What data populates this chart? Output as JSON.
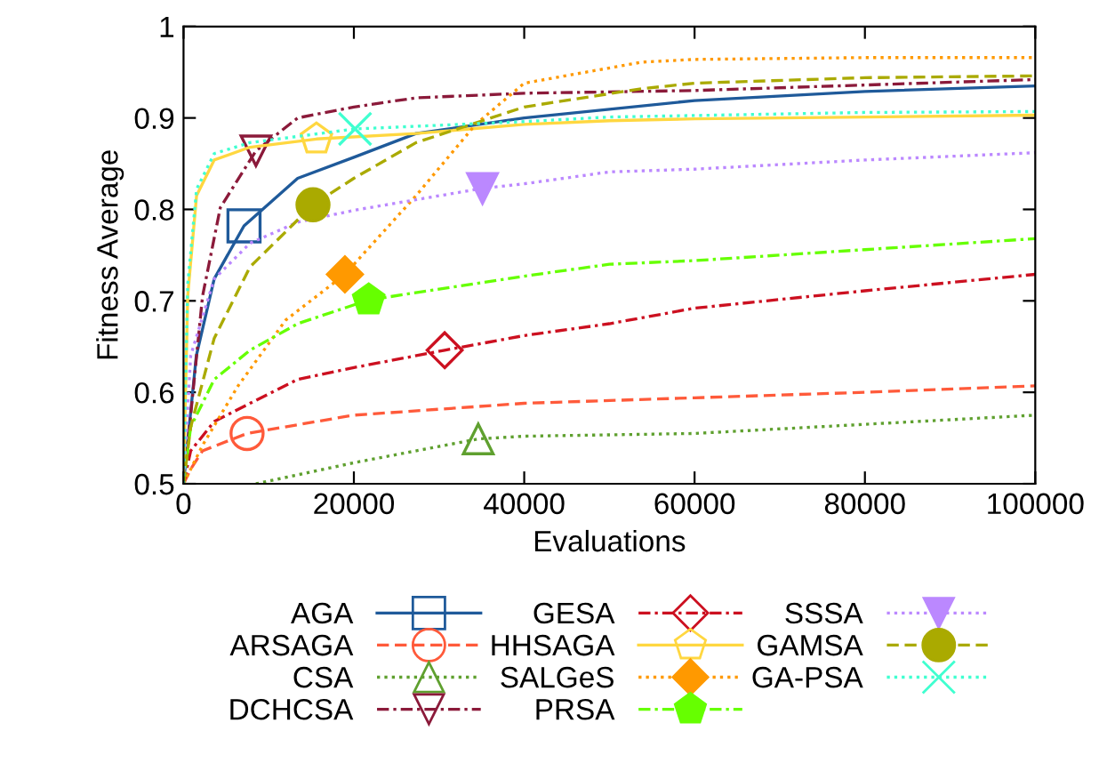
{
  "chart_data": {
    "type": "line",
    "xlabel": "Evaluations",
    "ylabel": "Fitness Average",
    "xlim": [
      0,
      100000
    ],
    "xticks": [
      0,
      20000,
      40000,
      60000,
      80000,
      100000
    ],
    "ylim": [
      0.5,
      1
    ],
    "yticks": [
      0.5,
      0.6,
      0.7,
      0.8,
      0.9,
      1
    ],
    "grid": false,
    "legend": "bottom",
    "series": [
      {
        "name": "AGA",
        "color": "#1f5a9a",
        "line_style": "solid",
        "x": [
          0,
          1500,
          3600,
          7100,
          13400,
          20000,
          27300,
          40000,
          60000,
          80000,
          100000
        ],
        "values": [
          0.5,
          0.64,
          0.724,
          0.782,
          0.834,
          0.857,
          0.883,
          0.9,
          0.919,
          0.929,
          0.935
        ]
      },
      {
        "name": "ARSAGA",
        "color": "#ff5a3a",
        "line_style": "dashed",
        "x": [
          0,
          840,
          2230,
          7460,
          20000,
          40000,
          60000,
          80000,
          100000
        ],
        "values": [
          0.5,
          0.516,
          0.536,
          0.555,
          0.575,
          0.588,
          0.594,
          0.6,
          0.607
        ]
      },
      {
        "name": "CSA",
        "color": "#5fa02f",
        "line_style": "dotted",
        "x": [
          8500,
          20000,
          34600,
          40000,
          60000,
          80000,
          100000
        ],
        "values": [
          0.5,
          0.523,
          0.549,
          0.552,
          0.555,
          0.565,
          0.575
        ]
      },
      {
        "name": "DCHCSA",
        "color": "#8b1a3a",
        "line_style": "dashdot",
        "x": [
          0,
          840,
          2230,
          4320,
          8500,
          13400,
          20000,
          27300,
          40000,
          60000,
          80000,
          100000
        ],
        "values": [
          0.5,
          0.575,
          0.705,
          0.802,
          0.864,
          0.9,
          0.912,
          0.922,
          0.927,
          0.93,
          0.936,
          0.942
        ]
      },
      {
        "name": "GESA",
        "color": "#cc1020",
        "line_style": "dashdot",
        "x": [
          0,
          840,
          3600,
          7800,
          13400,
          20000,
          30660,
          40000,
          50000,
          60000,
          80000,
          100000
        ],
        "values": [
          0.5,
          0.536,
          0.568,
          0.588,
          0.614,
          0.627,
          0.646,
          0.662,
          0.675,
          0.692,
          0.711,
          0.729
        ]
      },
      {
        "name": "HHSAGA",
        "color": "#ffd740",
        "line_style": "solid",
        "x": [
          0,
          490,
          1530,
          3600,
          7800,
          15600,
          27300,
          40000,
          50000,
          60000,
          80000,
          100000
        ],
        "values": [
          0.5,
          0.705,
          0.815,
          0.854,
          0.868,
          0.877,
          0.883,
          0.893,
          0.897,
          0.899,
          0.901,
          0.903
        ]
      },
      {
        "name": "SALGeS",
        "color": "#ff9900",
        "line_style": "dotted",
        "x": [
          0,
          2230,
          6400,
          12000,
          18950,
          27300,
          34300,
          40000,
          53800,
          60000,
          80000,
          100000
        ],
        "values": [
          0.5,
          0.542,
          0.607,
          0.679,
          0.729,
          0.815,
          0.893,
          0.938,
          0.961,
          0.964,
          0.966,
          0.966
        ]
      },
      {
        "name": "PRSA",
        "color": "#66ff00",
        "line_style": "dashdot",
        "x": [
          0,
          840,
          3600,
          7800,
          13400,
          21740,
          40000,
          50000,
          60000,
          80000,
          100000
        ],
        "values": [
          0.5,
          0.562,
          0.614,
          0.646,
          0.675,
          0.701,
          0.727,
          0.74,
          0.744,
          0.756,
          0.768
        ]
      },
      {
        "name": "SSSA",
        "color": "#bb88ff",
        "line_style": "dotted",
        "x": [
          0,
          840,
          3600,
          7800,
          13400,
          20000,
          35100,
          40000,
          50000,
          60000,
          80000,
          100000
        ],
        "values": [
          0.5,
          0.64,
          0.724,
          0.763,
          0.786,
          0.799,
          0.823,
          0.828,
          0.841,
          0.844,
          0.854,
          0.862
        ]
      },
      {
        "name": "GAMSA",
        "color": "#aaaa00",
        "line_style": "dashed",
        "x": [
          0,
          840,
          3600,
          7800,
          15200,
          20000,
          27300,
          40000,
          53800,
          60000,
          80000,
          100000
        ],
        "values": [
          0.5,
          0.562,
          0.659,
          0.737,
          0.805,
          0.834,
          0.873,
          0.912,
          0.932,
          0.938,
          0.944,
          0.946
        ]
      },
      {
        "name": "GA-PSA",
        "color": "#40ffd0",
        "line_style": "dotted",
        "x": [
          0,
          490,
          1530,
          3600,
          7800,
          20140,
          40000,
          50000,
          80000,
          100000
        ],
        "values": [
          0.5,
          0.718,
          0.822,
          0.861,
          0.873,
          0.888,
          0.896,
          0.901,
          0.906,
          0.907
        ]
      }
    ]
  }
}
